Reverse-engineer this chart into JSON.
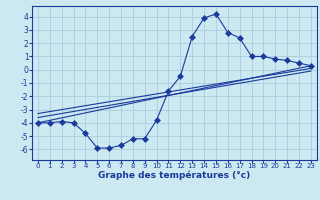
{
  "background_color": "#cce8f0",
  "grid_color": "#aaccdd",
  "line_color": "#1a3a9c",
  "xlabel": "Graphe des températures (°c)",
  "xlim": [
    -0.5,
    23.5
  ],
  "ylim": [
    -6.8,
    4.8
  ],
  "yticks": [
    -6,
    -5,
    -4,
    -3,
    -2,
    -1,
    0,
    1,
    2,
    3,
    4
  ],
  "xticks": [
    0,
    1,
    2,
    3,
    4,
    5,
    6,
    7,
    8,
    9,
    10,
    11,
    12,
    13,
    14,
    15,
    16,
    17,
    18,
    19,
    20,
    21,
    22,
    23
  ],
  "curve1_x": [
    0,
    1,
    2,
    3,
    4,
    5,
    6,
    7,
    8,
    9,
    10,
    11,
    12,
    13,
    14,
    15,
    16,
    17,
    18,
    19,
    20,
    21,
    22,
    23
  ],
  "curve1_y": [
    -4.0,
    -4.0,
    -3.9,
    -4.0,
    -4.8,
    -5.9,
    -5.9,
    -5.7,
    -5.2,
    -5.2,
    -3.8,
    -1.6,
    -0.5,
    2.5,
    3.9,
    4.2,
    2.8,
    2.4,
    1.0,
    1.0,
    0.8,
    0.7,
    0.5,
    0.3
  ],
  "line1_x": [
    0,
    23
  ],
  "line1_y": [
    -4.0,
    0.3
  ],
  "line2_x": [
    0,
    23
  ],
  "line2_y": [
    -3.6,
    -0.1
  ],
  "line3_x": [
    0,
    23
  ],
  "line3_y": [
    -3.3,
    0.1
  ],
  "tick_fontsize": 5,
  "xlabel_fontsize": 6.5,
  "linewidth": 0.8,
  "marker_size": 3.0
}
